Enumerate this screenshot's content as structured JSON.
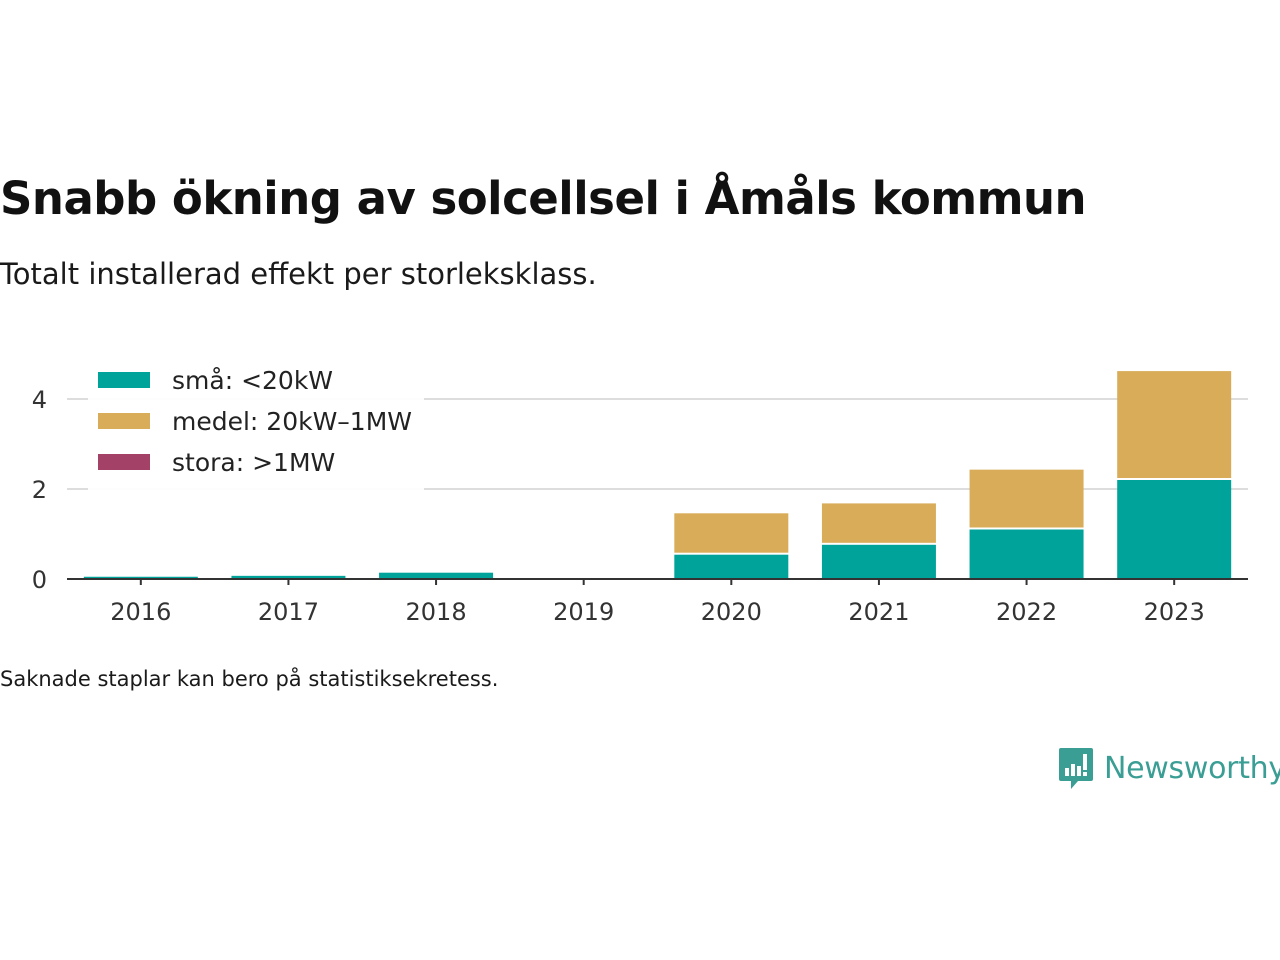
{
  "title": "Snabb ökning av solcellsel i Åmåls kommun",
  "subtitle": "Totalt installerad effekt per storleksklass.",
  "footnote": "Saknade staplar kan bero på statistiksekretess.",
  "brand": {
    "name": "Newsworthy",
    "icon": "newsworthy-logo-icon",
    "color": "#3a9e95"
  },
  "chart_data": {
    "type": "bar",
    "stacked": true,
    "categories": [
      "2016",
      "2017",
      "2018",
      "2019",
      "2020",
      "2021",
      "2022",
      "2023"
    ],
    "series": [
      {
        "name": "små: <20kW",
        "color": "#00a39a",
        "values": [
          0.05,
          0.07,
          0.14,
          0,
          0.54,
          0.76,
          1.1,
          2.2
        ]
      },
      {
        "name": "medel: 20kW–1MW",
        "color": "#d9ac59",
        "values": [
          0,
          0,
          0,
          0,
          0.92,
          0.92,
          1.33,
          2.42
        ]
      },
      {
        "name": "stora: >1MW",
        "color": "#a34167",
        "values": [
          0,
          0,
          0,
          0,
          0,
          0,
          0,
          0
        ]
      }
    ],
    "yticks": [
      0,
      2,
      4
    ],
    "ylim": [
      0,
      4.6
    ],
    "grid": true,
    "legend_position": "top-left",
    "xlabel": "",
    "ylabel": ""
  }
}
